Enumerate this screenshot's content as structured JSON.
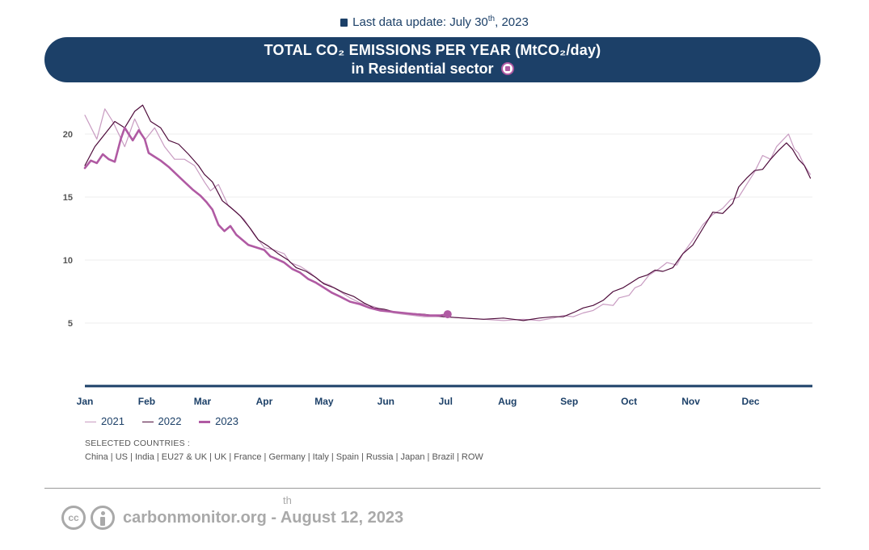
{
  "header": {
    "update_prefix": "Last data update: July 30",
    "update_sup": "th",
    "update_suffix": ", 2023",
    "icon": "calendar-icon"
  },
  "banner": {
    "title_line1": "TOTAL CO₂ EMISSIONS PER YEAR (MtCO₂/day)",
    "title_line2": "in Residential sector",
    "icon": "residential-icon"
  },
  "colors": {
    "navy": "#1c4068",
    "series_2021": "#c89bc1",
    "series_2022": "#4e0c3b",
    "series_2023": "#b05aa3"
  },
  "chart_data": {
    "type": "line",
    "x_axis": "day of year",
    "months": [
      "Jan",
      "Feb",
      "Mar",
      "Apr",
      "May",
      "Jun",
      "Jul",
      "Aug",
      "Sep",
      "Oct",
      "Nov",
      "Dec"
    ],
    "yticks": [
      5,
      10,
      15,
      20
    ],
    "ylim": [
      0,
      23
    ],
    "grid": true,
    "legend_position": "bottom-left",
    "series": [
      {
        "name": "2021",
        "color": "#c89bc1",
        "width": 1.2,
        "points": [
          [
            0,
            21.5
          ],
          [
            6,
            19.6
          ],
          [
            10,
            22.0
          ],
          [
            14,
            21.0
          ],
          [
            20,
            19.0
          ],
          [
            25,
            21.2
          ],
          [
            30,
            19.5
          ],
          [
            35,
            20.5
          ],
          [
            40,
            19.0
          ],
          [
            45,
            18.0
          ],
          [
            50,
            18.0
          ],
          [
            55,
            17.5
          ],
          [
            60,
            16.2
          ],
          [
            63,
            15.5
          ],
          [
            67,
            16.0
          ],
          [
            72,
            14.3
          ],
          [
            76,
            13.8
          ],
          [
            80,
            13.2
          ],
          [
            85,
            12.0
          ],
          [
            90,
            11.0
          ],
          [
            95,
            10.8
          ],
          [
            100,
            10.5
          ],
          [
            103,
            9.8
          ],
          [
            108,
            9.5
          ],
          [
            113,
            9.0
          ],
          [
            118,
            8.3
          ],
          [
            123,
            8.0
          ],
          [
            128,
            7.5
          ],
          [
            133,
            7.0
          ],
          [
            138,
            6.6
          ],
          [
            145,
            6.3
          ],
          [
            150,
            6.0
          ],
          [
            155,
            5.8
          ],
          [
            160,
            5.7
          ],
          [
            170,
            5.5
          ],
          [
            180,
            5.5
          ],
          [
            190,
            5.4
          ],
          [
            200,
            5.3
          ],
          [
            210,
            5.2
          ],
          [
            220,
            5.3
          ],
          [
            228,
            5.2
          ],
          [
            235,
            5.4
          ],
          [
            240,
            5.6
          ],
          [
            245,
            5.5
          ],
          [
            250,
            5.8
          ],
          [
            255,
            6.0
          ],
          [
            260,
            6.5
          ],
          [
            265,
            6.4
          ],
          [
            268,
            7.0
          ],
          [
            273,
            7.2
          ],
          [
            276,
            7.8
          ],
          [
            279,
            8.0
          ],
          [
            283,
            8.8
          ],
          [
            288,
            9.3
          ],
          [
            292,
            9.8
          ],
          [
            297,
            9.6
          ],
          [
            300,
            10.5
          ],
          [
            305,
            11.6
          ],
          [
            310,
            12.8
          ],
          [
            315,
            13.6
          ],
          [
            320,
            14.1
          ],
          [
            324,
            14.8
          ],
          [
            328,
            15.0
          ],
          [
            332,
            16.0
          ],
          [
            336,
            17.0
          ],
          [
            340,
            18.3
          ],
          [
            344,
            18.0
          ],
          [
            347,
            19.0
          ],
          [
            350,
            19.5
          ],
          [
            353,
            20.0
          ],
          [
            356,
            18.8
          ],
          [
            358,
            18.5
          ],
          [
            361,
            17.5
          ],
          [
            364,
            16.8
          ]
        ]
      },
      {
        "name": "2022",
        "color": "#4e0c3b",
        "width": 1.2,
        "points": [
          [
            0,
            17.5
          ],
          [
            5,
            19.0
          ],
          [
            10,
            20.0
          ],
          [
            15,
            21.0
          ],
          [
            20,
            20.5
          ],
          [
            25,
            21.8
          ],
          [
            29,
            22.3
          ],
          [
            33,
            21.0
          ],
          [
            38,
            20.5
          ],
          [
            42,
            19.5
          ],
          [
            47,
            19.2
          ],
          [
            52,
            18.4
          ],
          [
            57,
            17.5
          ],
          [
            60,
            16.8
          ],
          [
            64,
            16.2
          ],
          [
            69,
            14.7
          ],
          [
            73,
            14.2
          ],
          [
            78,
            13.5
          ],
          [
            83,
            12.5
          ],
          [
            87,
            11.6
          ],
          [
            92,
            11.1
          ],
          [
            97,
            10.5
          ],
          [
            102,
            10.0
          ],
          [
            106,
            9.4
          ],
          [
            111,
            9.1
          ],
          [
            116,
            8.6
          ],
          [
            120,
            8.1
          ],
          [
            125,
            7.8
          ],
          [
            130,
            7.4
          ],
          [
            135,
            7.1
          ],
          [
            140,
            6.6
          ],
          [
            145,
            6.2
          ],
          [
            150,
            6.1
          ],
          [
            155,
            5.9
          ],
          [
            160,
            5.8
          ],
          [
            170,
            5.7
          ],
          [
            180,
            5.5
          ],
          [
            190,
            5.4
          ],
          [
            200,
            5.3
          ],
          [
            210,
            5.4
          ],
          [
            220,
            5.2
          ],
          [
            228,
            5.4
          ],
          [
            235,
            5.5
          ],
          [
            240,
            5.5
          ],
          [
            246,
            5.9
          ],
          [
            250,
            6.2
          ],
          [
            255,
            6.4
          ],
          [
            260,
            6.8
          ],
          [
            265,
            7.5
          ],
          [
            270,
            7.8
          ],
          [
            274,
            8.2
          ],
          [
            278,
            8.6
          ],
          [
            282,
            8.8
          ],
          [
            286,
            9.2
          ],
          [
            290,
            9.1
          ],
          [
            295,
            9.4
          ],
          [
            300,
            10.5
          ],
          [
            305,
            11.2
          ],
          [
            310,
            12.5
          ],
          [
            315,
            13.8
          ],
          [
            320,
            13.7
          ],
          [
            325,
            14.5
          ],
          [
            328,
            15.8
          ],
          [
            332,
            16.5
          ],
          [
            336,
            17.1
          ],
          [
            340,
            17.2
          ],
          [
            344,
            18.0
          ],
          [
            348,
            18.7
          ],
          [
            352,
            19.3
          ],
          [
            355,
            18.8
          ],
          [
            358,
            18.0
          ],
          [
            361,
            17.5
          ],
          [
            364,
            16.5
          ]
        ]
      },
      {
        "name": "2023",
        "color": "#b05aa3",
        "width": 2.6,
        "points": [
          [
            0,
            17.3
          ],
          [
            3,
            17.9
          ],
          [
            6,
            17.7
          ],
          [
            9,
            18.4
          ],
          [
            12,
            18.0
          ],
          [
            15,
            17.8
          ],
          [
            18,
            19.6
          ],
          [
            20,
            20.5
          ],
          [
            22,
            20.0
          ],
          [
            24,
            19.5
          ],
          [
            27,
            20.3
          ],
          [
            30,
            19.6
          ],
          [
            32,
            18.5
          ],
          [
            35,
            18.2
          ],
          [
            38,
            17.9
          ],
          [
            42,
            17.4
          ],
          [
            46,
            16.8
          ],
          [
            50,
            16.2
          ],
          [
            54,
            15.6
          ],
          [
            58,
            15.1
          ],
          [
            61,
            14.6
          ],
          [
            64,
            14.0
          ],
          [
            67,
            12.8
          ],
          [
            70,
            12.3
          ],
          [
            73,
            12.7
          ],
          [
            76,
            12.0
          ],
          [
            79,
            11.6
          ],
          [
            82,
            11.2
          ],
          [
            86,
            11.0
          ],
          [
            90,
            10.8
          ],
          [
            93,
            10.3
          ],
          [
            96,
            10.1
          ],
          [
            100,
            9.8
          ],
          [
            104,
            9.3
          ],
          [
            108,
            9.0
          ],
          [
            112,
            8.5
          ],
          [
            116,
            8.2
          ],
          [
            120,
            7.8
          ],
          [
            124,
            7.4
          ],
          [
            128,
            7.1
          ],
          [
            133,
            6.7
          ],
          [
            138,
            6.5
          ],
          [
            143,
            6.2
          ],
          [
            148,
            6.0
          ],
          [
            154,
            5.9
          ],
          [
            160,
            5.8
          ],
          [
            166,
            5.7
          ],
          [
            172,
            5.6
          ],
          [
            178,
            5.6
          ],
          [
            182,
            5.7
          ]
        ]
      }
    ],
    "end_marker": {
      "series": "2023",
      "x": 182,
      "y": 5.7
    }
  },
  "legend": {
    "items": [
      {
        "label": "2021",
        "color": "#c89bc1"
      },
      {
        "label": "2022",
        "color": "#4e0c3b"
      },
      {
        "label": "2023",
        "color": "#b05aa3"
      }
    ]
  },
  "countries": {
    "title": "SELECTED COUNTRIES :",
    "list": "China | US | India | EU27 & UK | UK | France | Germany | Italy | Spain | Russia | Japan | Brazil | ROW"
  },
  "footer": {
    "text": "carbonmonitor.org - August 12, 2023",
    "sup": "th",
    "cc_label": "cc",
    "cc_icon": "creative-commons-icon",
    "by_icon": "attribution-icon"
  }
}
